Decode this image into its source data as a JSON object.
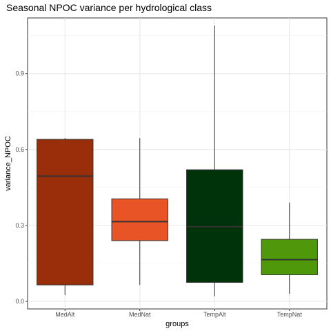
{
  "chart_data": {
    "type": "box",
    "title": "Seasonal NPOC variance per hydrological class",
    "xlabel": "groups",
    "ylabel": "variance_NPOC",
    "ylim": [
      -0.03,
      1.12
    ],
    "yticks": [
      0.0,
      0.3,
      0.6,
      0.9
    ],
    "ytick_labels": [
      "0.0",
      "0.3",
      "0.6",
      "0.9"
    ],
    "grid": true,
    "categories": [
      "MedAlt",
      "MedNat",
      "TempAlt",
      "TempNat"
    ],
    "boxes": [
      {
        "group": "MedAlt",
        "whisker_low": 0.025,
        "q1": 0.065,
        "median": 0.495,
        "q3": 0.64,
        "whisker_high": 0.645,
        "color": "#9a2d0a"
      },
      {
        "group": "MedNat",
        "whisker_low": 0.065,
        "q1": 0.24,
        "median": 0.315,
        "q3": 0.405,
        "whisker_high": 0.645,
        "color": "#e95427"
      },
      {
        "group": "TempAlt",
        "whisker_low": 0.02,
        "q1": 0.075,
        "median": 0.295,
        "q3": 0.52,
        "whisker_high": 1.09,
        "color": "#003309"
      },
      {
        "group": "TempNat",
        "whisker_low": 0.03,
        "q1": 0.105,
        "median": 0.165,
        "q3": 0.245,
        "whisker_high": 0.39,
        "color": "#4e980a"
      }
    ]
  }
}
